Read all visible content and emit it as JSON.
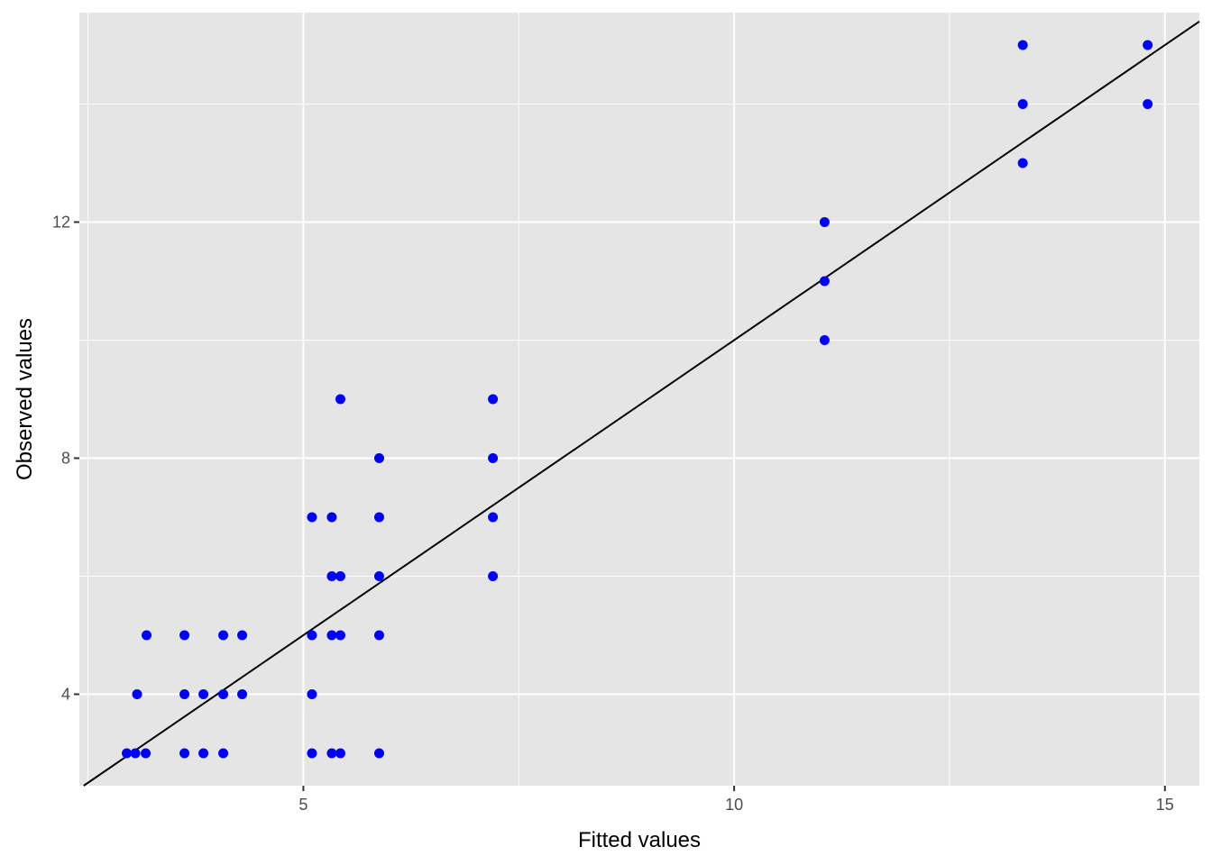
{
  "chart_data": {
    "type": "scatter",
    "title": "",
    "xlabel": "Fitted values",
    "ylabel": "Observed values",
    "xlim": [
      2.4,
      15.4
    ],
    "ylim": [
      2.45,
      15.55
    ],
    "x_ticks": [
      5,
      10,
      15
    ],
    "x_tick_labels": [
      "5",
      "10",
      "15"
    ],
    "y_ticks": [
      4,
      8,
      12
    ],
    "y_tick_labels": [
      "4",
      "8",
      "12"
    ],
    "grid": true,
    "reference_line": {
      "slope": 1,
      "intercept": 0,
      "color": "#000000"
    },
    "point_color": "#0000ff",
    "panel_background": "#e5e5e5",
    "grid_color": "#ffffff",
    "points": [
      [
        2.95,
        3
      ],
      [
        3.05,
        3
      ],
      [
        3.17,
        3
      ],
      [
        3.07,
        4
      ],
      [
        3.18,
        5
      ],
      [
        3.62,
        3
      ],
      [
        3.62,
        4
      ],
      [
        3.62,
        5
      ],
      [
        3.84,
        3
      ],
      [
        3.84,
        4
      ],
      [
        4.07,
        3
      ],
      [
        4.07,
        4
      ],
      [
        4.07,
        5
      ],
      [
        4.29,
        4
      ],
      [
        4.29,
        5
      ],
      [
        5.1,
        3
      ],
      [
        5.1,
        4
      ],
      [
        5.1,
        5
      ],
      [
        5.1,
        7
      ],
      [
        5.33,
        3
      ],
      [
        5.33,
        5
      ],
      [
        5.33,
        6
      ],
      [
        5.33,
        7
      ],
      [
        5.43,
        3
      ],
      [
        5.43,
        5
      ],
      [
        5.43,
        6
      ],
      [
        5.43,
        9
      ],
      [
        5.88,
        3
      ],
      [
        5.88,
        5
      ],
      [
        5.88,
        6
      ],
      [
        5.88,
        7
      ],
      [
        5.88,
        8
      ],
      [
        7.2,
        6
      ],
      [
        7.2,
        7
      ],
      [
        7.2,
        8
      ],
      [
        7.2,
        9
      ],
      [
        11.05,
        10
      ],
      [
        11.05,
        11
      ],
      [
        11.05,
        12
      ],
      [
        13.35,
        13
      ],
      [
        13.35,
        14
      ],
      [
        13.35,
        15
      ],
      [
        14.8,
        14
      ],
      [
        14.8,
        15
      ]
    ]
  }
}
